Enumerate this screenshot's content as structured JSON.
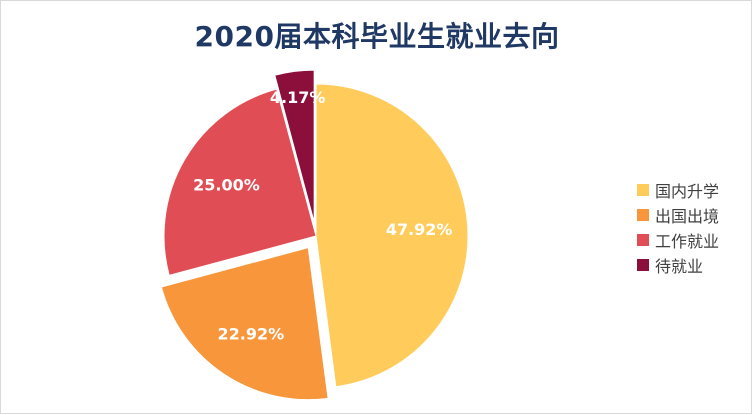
{
  "chart_data": {
    "type": "pie",
    "title": "2020届本科毕业生就业去向",
    "slices": [
      {
        "label": "国内升学",
        "value": 47.92,
        "display": "47.92%",
        "color": "#ffcc5c",
        "exploded": false
      },
      {
        "label": "出国出境",
        "value": 22.92,
        "display": "22.92%",
        "color": "#f7963a",
        "exploded": true
      },
      {
        "label": "工作就业",
        "value": 25.0,
        "display": "25.00%",
        "color": "#e04d55",
        "exploded": false
      },
      {
        "label": "待就业",
        "value": 4.17,
        "display": "4.17%",
        "color": "#8b0f3a",
        "exploded": true
      }
    ],
    "legend_position": "right"
  }
}
